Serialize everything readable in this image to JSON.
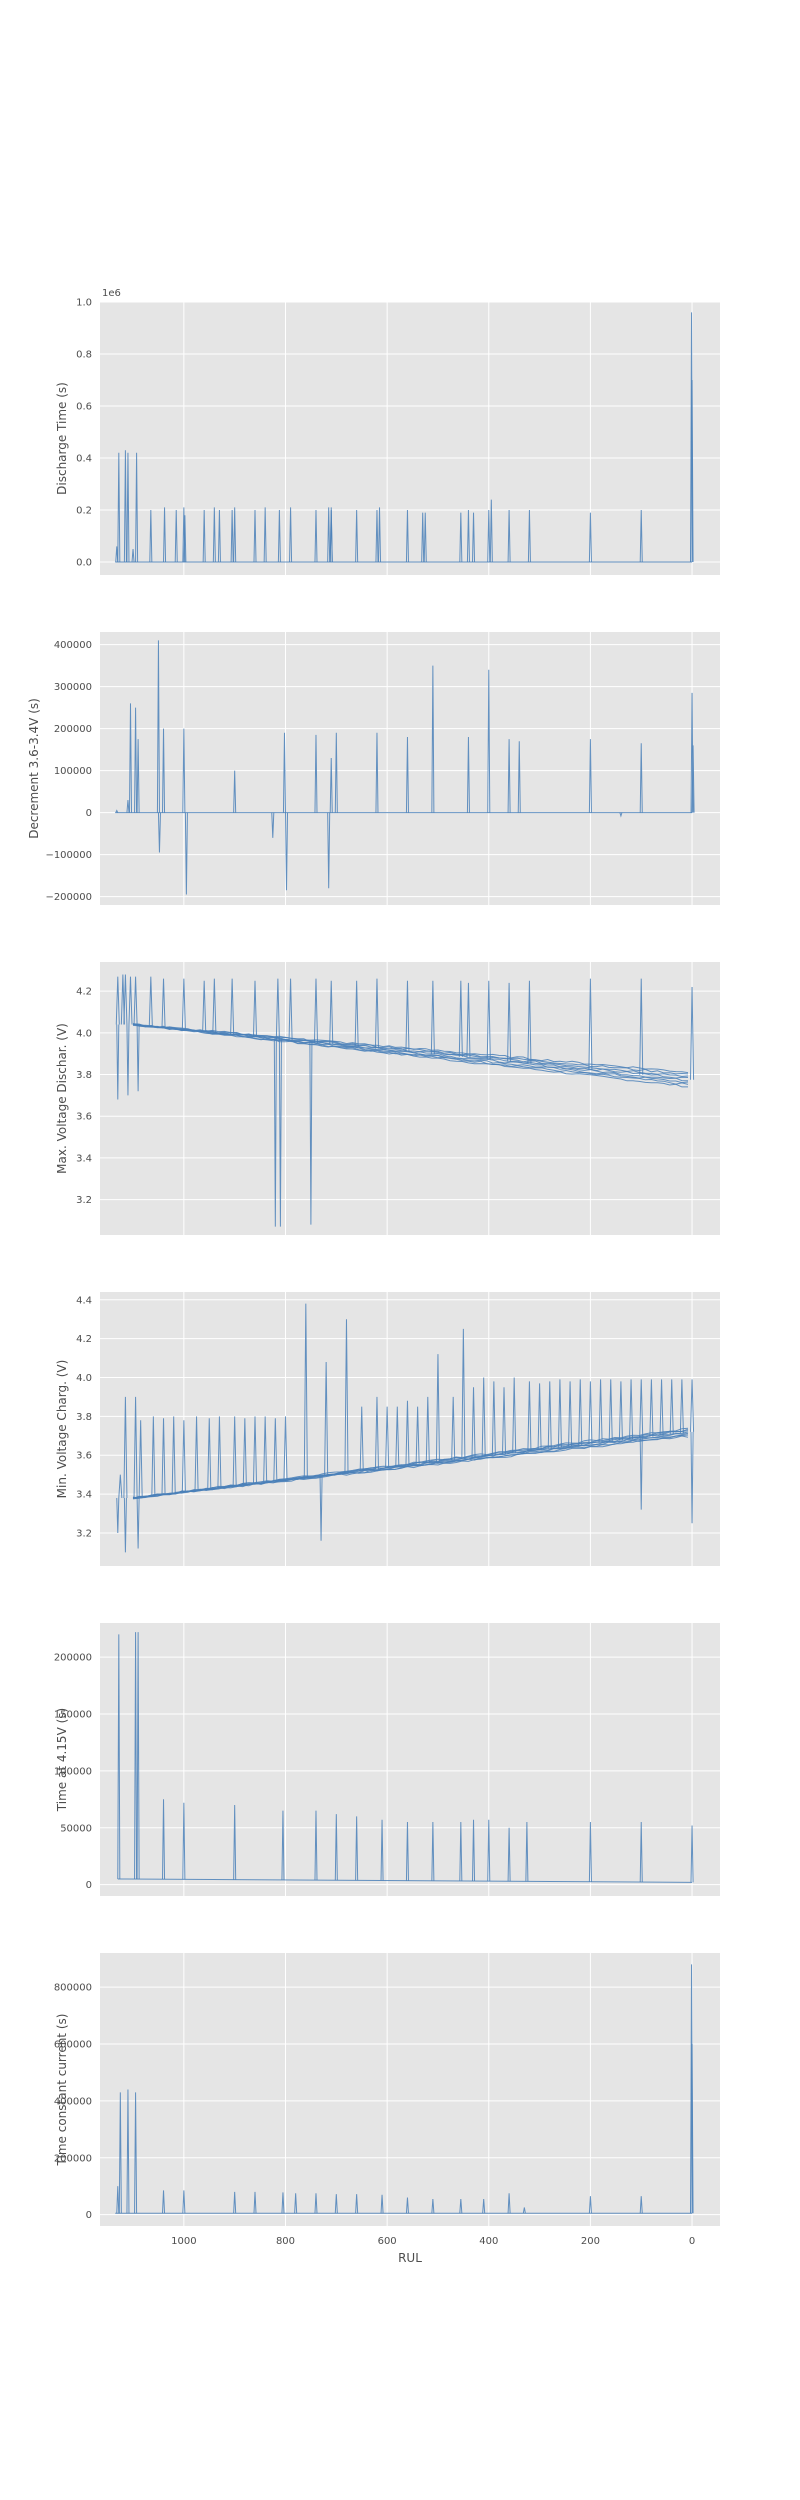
{
  "chart_data": [
    {
      "type": "line",
      "ylabel": "Discharge Time (s)",
      "offset_text": "1e6",
      "ylim": [
        -0.05,
        1.0
      ],
      "yticks": [
        0.0,
        0.2,
        0.4,
        0.6,
        0.8,
        1.0
      ],
      "ytick_labels": [
        "0.0",
        "0.2",
        "0.4",
        "0.6",
        "0.8",
        "1.0"
      ],
      "baseline": 0.0,
      "spikes": [
        [
          1132,
          0.06
        ],
        [
          1128,
          0.42
        ],
        [
          1115,
          0.43
        ],
        [
          1110,
          0.42
        ],
        [
          1100,
          0.05
        ],
        [
          1093,
          0.42
        ],
        [
          1065,
          0.2
        ],
        [
          1038,
          0.21
        ],
        [
          1015,
          0.2
        ],
        [
          1000,
          0.21
        ],
        [
          998,
          0.18
        ],
        [
          960,
          0.2
        ],
        [
          940,
          0.21
        ],
        [
          930,
          0.2
        ],
        [
          905,
          0.2
        ],
        [
          900,
          0.21
        ],
        [
          860,
          0.2
        ],
        [
          840,
          0.21
        ],
        [
          812,
          0.2
        ],
        [
          790,
          0.21
        ],
        [
          740,
          0.2
        ],
        [
          715,
          0.21
        ],
        [
          710,
          0.2
        ],
        [
          710,
          0.21
        ],
        [
          660,
          0.2
        ],
        [
          620,
          0.2
        ],
        [
          615,
          0.21
        ],
        [
          560,
          0.2
        ],
        [
          530,
          0.19
        ],
        [
          525,
          0.19
        ],
        [
          455,
          0.19
        ],
        [
          440,
          0.2
        ],
        [
          430,
          0.19
        ],
        [
          400,
          0.2
        ],
        [
          395,
          0.24
        ],
        [
          360,
          0.2
        ],
        [
          320,
          0.2
        ],
        [
          200,
          0.19
        ],
        [
          100,
          0.2
        ],
        [
          1,
          0.96
        ],
        [
          0,
          0.7
        ]
      ],
      "grid": true
    },
    {
      "type": "line",
      "ylabel": "Decrement 3.6-3.4V (s)",
      "ylim": [
        -220000,
        430000
      ],
      "yticks": [
        -200000,
        -100000,
        0,
        100000,
        200000,
        300000,
        400000
      ],
      "ytick_labels": [
        "−200000",
        "−100000",
        "0",
        "100000",
        "200000",
        "300000",
        "400000"
      ],
      "baseline": 0,
      "spikes": [
        [
          1132,
          5000
        ],
        [
          1110,
          30000
        ],
        [
          1105,
          260000
        ],
        [
          1095,
          250000
        ],
        [
          1090,
          175000
        ],
        [
          1050,
          410000
        ],
        [
          1048,
          -95000
        ],
        [
          1040,
          200000
        ],
        [
          1000,
          200000
        ],
        [
          995,
          -195000
        ],
        [
          900,
          100000
        ],
        [
          825,
          -60000
        ],
        [
          802,
          190000
        ],
        [
          798,
          -185000
        ],
        [
          740,
          185000
        ],
        [
          715,
          -180000
        ],
        [
          710,
          130000
        ],
        [
          700,
          190000
        ],
        [
          620,
          190000
        ],
        [
          560,
          180000
        ],
        [
          510,
          350000
        ],
        [
          440,
          180000
        ],
        [
          400,
          340000
        ],
        [
          360,
          175000
        ],
        [
          340,
          170000
        ],
        [
          200,
          175000
        ],
        [
          140,
          -8000
        ],
        [
          100,
          165000
        ],
        [
          0,
          285000
        ],
        [
          -2,
          160000
        ]
      ],
      "grid": true
    },
    {
      "type": "line",
      "ylabel": "Max. Voltage Dischar. (V)",
      "ylim": [
        3.03,
        4.34
      ],
      "yticks": [
        3.2,
        3.4,
        3.6,
        3.8,
        4.0,
        4.2
      ],
      "ytick_labels": [
        "3.2",
        "3.4",
        "3.6",
        "3.8",
        "4.0",
        "4.2"
      ],
      "trend_start": [
        1100,
        4.04
      ],
      "trend_end_range": [
        3.74,
        3.81
      ],
      "series_count": 8,
      "spikes": [
        [
          1130,
          4.27
        ],
        [
          1120,
          4.28
        ],
        [
          1115,
          4.28
        ],
        [
          1105,
          4.27
        ],
        [
          1095,
          4.27
        ],
        [
          1065,
          4.27
        ],
        [
          1040,
          4.26
        ],
        [
          1000,
          4.26
        ],
        [
          960,
          4.25
        ],
        [
          940,
          4.26
        ],
        [
          905,
          4.26
        ],
        [
          860,
          4.25
        ],
        [
          815,
          4.26
        ],
        [
          790,
          4.26
        ],
        [
          740,
          4.26
        ],
        [
          710,
          4.25
        ],
        [
          660,
          4.25
        ],
        [
          620,
          4.26
        ],
        [
          560,
          4.25
        ],
        [
          510,
          4.25
        ],
        [
          455,
          4.25
        ],
        [
          440,
          4.24
        ],
        [
          400,
          4.25
        ],
        [
          360,
          4.24
        ],
        [
          320,
          4.25
        ],
        [
          200,
          4.26
        ],
        [
          100,
          4.26
        ],
        [
          0,
          4.22
        ]
      ],
      "dips": [
        [
          1130,
          3.68
        ],
        [
          1110,
          3.7
        ],
        [
          1090,
          3.72
        ],
        [
          820,
          3.07
        ],
        [
          810,
          3.07
        ],
        [
          750,
          3.08
        ]
      ],
      "grid": true
    },
    {
      "type": "line",
      "ylabel": "Min. Voltage Charg. (V)",
      "ylim": [
        3.03,
        4.44
      ],
      "yticks": [
        3.2,
        3.4,
        3.6,
        3.8,
        4.0,
        4.2,
        4.4
      ],
      "ytick_labels": [
        "3.2",
        "3.4",
        "3.6",
        "3.8",
        "4.0",
        "4.2",
        "4.4"
      ],
      "trend_start": [
        1100,
        3.38
      ],
      "trend_end_range": [
        3.7,
        3.74
      ],
      "series_count": 8,
      "spikes": [
        [
          1125,
          3.5
        ],
        [
          1115,
          3.9
        ],
        [
          1095,
          3.9
        ],
        [
          1085,
          3.78
        ],
        [
          1060,
          3.8
        ],
        [
          1040,
          3.79
        ],
        [
          1020,
          3.8
        ],
        [
          1000,
          3.78
        ],
        [
          975,
          3.8
        ],
        [
          950,
          3.79
        ],
        [
          930,
          3.8
        ],
        [
          900,
          3.8
        ],
        [
          880,
          3.79
        ],
        [
          860,
          3.8
        ],
        [
          840,
          3.8
        ],
        [
          820,
          3.79
        ],
        [
          800,
          3.8
        ],
        [
          760,
          4.38
        ],
        [
          720,
          4.08
        ],
        [
          680,
          4.3
        ],
        [
          650,
          3.85
        ],
        [
          620,
          3.9
        ],
        [
          600,
          3.85
        ],
        [
          580,
          3.85
        ],
        [
          560,
          3.88
        ],
        [
          540,
          3.85
        ],
        [
          520,
          3.9
        ],
        [
          500,
          4.12
        ],
        [
          470,
          3.9
        ],
        [
          450,
          4.25
        ],
        [
          430,
          3.95
        ],
        [
          410,
          4.0
        ],
        [
          390,
          3.98
        ],
        [
          370,
          3.95
        ],
        [
          350,
          4.0
        ],
        [
          320,
          3.98
        ],
        [
          300,
          3.97
        ],
        [
          280,
          3.98
        ],
        [
          260,
          3.99
        ],
        [
          240,
          3.98
        ],
        [
          220,
          3.99
        ],
        [
          200,
          3.98
        ],
        [
          180,
          3.99
        ],
        [
          160,
          3.99
        ],
        [
          140,
          3.98
        ],
        [
          120,
          3.99
        ],
        [
          100,
          3.99
        ],
        [
          80,
          3.99
        ],
        [
          60,
          3.99
        ],
        [
          40,
          3.99
        ],
        [
          20,
          3.99
        ],
        [
          0,
          3.99
        ]
      ],
      "dips": [
        [
          1130,
          3.2
        ],
        [
          1115,
          3.1
        ],
        [
          1090,
          3.12
        ],
        [
          730,
          3.16
        ],
        [
          100,
          3.32
        ],
        [
          0,
          3.25
        ]
      ],
      "grid": true
    },
    {
      "type": "line",
      "ylabel": "Time at 4.15V (s)",
      "ylim": [
        -10000,
        230000
      ],
      "yticks": [
        0,
        50000,
        100000,
        150000,
        200000
      ],
      "ytick_labels": [
        "0",
        "50000",
        "100000",
        "150000",
        "200000"
      ],
      "baseline_start": [
        1130,
        5000
      ],
      "baseline_end": [
        0,
        2000
      ],
      "spikes": [
        [
          1128,
          220000
        ],
        [
          1095,
          222000
        ],
        [
          1090,
          222000
        ],
        [
          1040,
          75000
        ],
        [
          1000,
          72000
        ],
        [
          900,
          70000
        ],
        [
          805,
          65000
        ],
        [
          740,
          65000
        ],
        [
          700,
          62000
        ],
        [
          660,
          60000
        ],
        [
          610,
          57000
        ],
        [
          560,
          55000
        ],
        [
          510,
          55000
        ],
        [
          455,
          55000
        ],
        [
          430,
          57000
        ],
        [
          400,
          57000
        ],
        [
          360,
          50000
        ],
        [
          325,
          55000
        ],
        [
          200,
          55000
        ],
        [
          100,
          55000
        ],
        [
          0,
          52000
        ]
      ],
      "grid": true
    },
    {
      "type": "line",
      "ylabel": "Time constant current (s)",
      "xlabel": "RUL",
      "xlim": [
        1165,
        -55
      ],
      "xticks": [
        1000,
        800,
        600,
        400,
        200,
        0
      ],
      "xtick_labels": [
        "1000",
        "800",
        "600",
        "400",
        "200",
        "0"
      ],
      "ylim": [
        -40000,
        920000
      ],
      "yticks": [
        0,
        200000,
        400000,
        600000,
        800000
      ],
      "ytick_labels": [
        "0",
        "200000",
        "400000",
        "600000",
        "800000"
      ],
      "baseline": 5000,
      "spikes": [
        [
          1130,
          100000
        ],
        [
          1125,
          430000
        ],
        [
          1110,
          440000
        ],
        [
          1095,
          430000
        ],
        [
          1040,
          85000
        ],
        [
          1000,
          85000
        ],
        [
          900,
          80000
        ],
        [
          860,
          80000
        ],
        [
          805,
          78000
        ],
        [
          780,
          75000
        ],
        [
          740,
          75000
        ],
        [
          700,
          72000
        ],
        [
          660,
          72000
        ],
        [
          610,
          70000
        ],
        [
          560,
          60000
        ],
        [
          510,
          55000
        ],
        [
          455,
          55000
        ],
        [
          410,
          55000
        ],
        [
          360,
          75000
        ],
        [
          330,
          25000
        ],
        [
          200,
          65000
        ],
        [
          100,
          65000
        ],
        [
          1,
          880000
        ],
        [
          0,
          600000
        ]
      ],
      "grid": true
    }
  ],
  "colors": {
    "line": "#4a80b8",
    "axes_background": "#e5e5e5",
    "grid": "#ffffff",
    "text": "#4d4d4d"
  }
}
